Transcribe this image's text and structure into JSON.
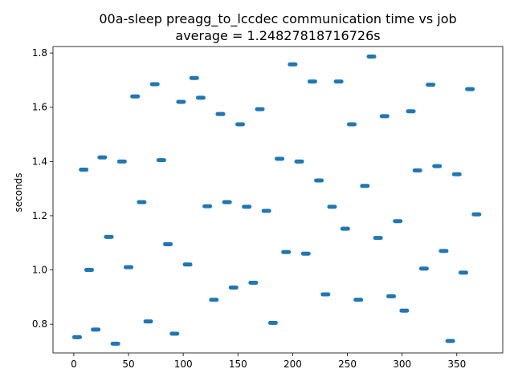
{
  "chart_data": {
    "type": "scatter",
    "title": "00a-sleep preagg_to_lccdec communication time vs job",
    "subtitle": "average = 1.24827818716726s",
    "xlabel": "",
    "ylabel": "seconds",
    "xlim": [
      -19,
      392
    ],
    "ylim": [
      0.694,
      1.824
    ],
    "xticks": [
      0,
      50,
      100,
      150,
      200,
      250,
      300,
      350
    ],
    "yticks": [
      0.8,
      1.0,
      1.2,
      1.4,
      1.6,
      1.8
    ],
    "ytick_labels": [
      "0.8",
      "1.0",
      "1.2",
      "1.4",
      "1.6",
      "1.8"
    ],
    "grid": false,
    "marker_color": "#1f77b4",
    "x": [
      3,
      9,
      14,
      20,
      26,
      32,
      38,
      44,
      50,
      56,
      62,
      68,
      74,
      80,
      86,
      92,
      98,
      104,
      110,
      116,
      122,
      128,
      134,
      140,
      146,
      152,
      158,
      164,
      170,
      176,
      182,
      188,
      194,
      200,
      206,
      212,
      218,
      224,
      230,
      236,
      242,
      248,
      254,
      260,
      266,
      272,
      278,
      284,
      290,
      296,
      302,
      308,
      314,
      320,
      326,
      332,
      338,
      344,
      350,
      356,
      362,
      368
    ],
    "y": [
      0.752,
      1.37,
      1.0,
      0.78,
      1.415,
      1.122,
      0.728,
      1.4,
      1.01,
      1.64,
      1.25,
      0.81,
      1.685,
      1.405,
      1.095,
      0.765,
      1.62,
      1.02,
      1.708,
      1.635,
      1.235,
      0.89,
      1.575,
      1.25,
      0.935,
      1.537,
      1.233,
      0.953,
      1.593,
      1.218,
      0.805,
      1.41,
      1.066,
      1.758,
      1.4,
      1.06,
      1.695,
      1.33,
      0.91,
      1.233,
      1.695,
      1.152,
      1.537,
      0.89,
      1.31,
      1.787,
      1.118,
      1.567,
      0.903,
      1.18,
      0.85,
      1.585,
      1.367,
      1.005,
      1.683,
      1.383,
      1.07,
      0.738,
      1.353,
      0.99,
      1.667,
      1.205
    ]
  }
}
